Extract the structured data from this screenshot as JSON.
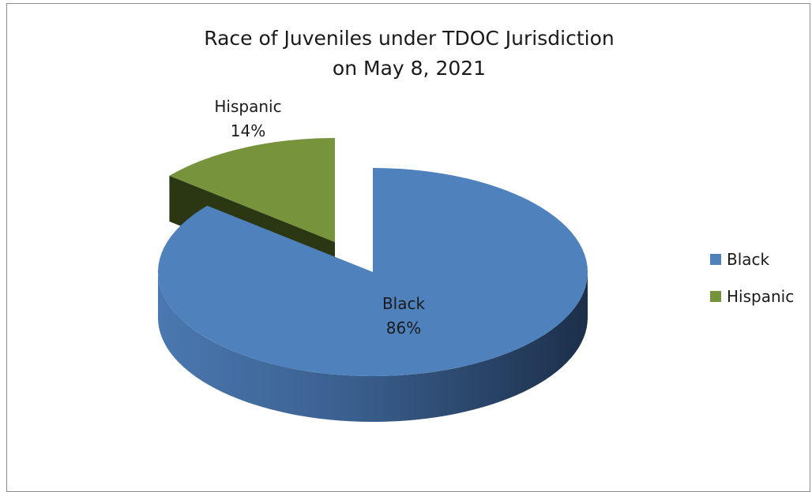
{
  "chart_data": {
    "type": "pie",
    "title": "Race of Juveniles under TDOC Jurisdiction",
    "subtitle": "on May 8, 2021",
    "categories": [
      "Black",
      "Hispanic"
    ],
    "values": [
      86,
      14
    ],
    "value_labels": [
      "86%",
      "14%"
    ],
    "colors": [
      "#4f81bd",
      "#77933c"
    ],
    "exploded": [
      false,
      true
    ],
    "legend_position": "right",
    "style": "3d"
  }
}
